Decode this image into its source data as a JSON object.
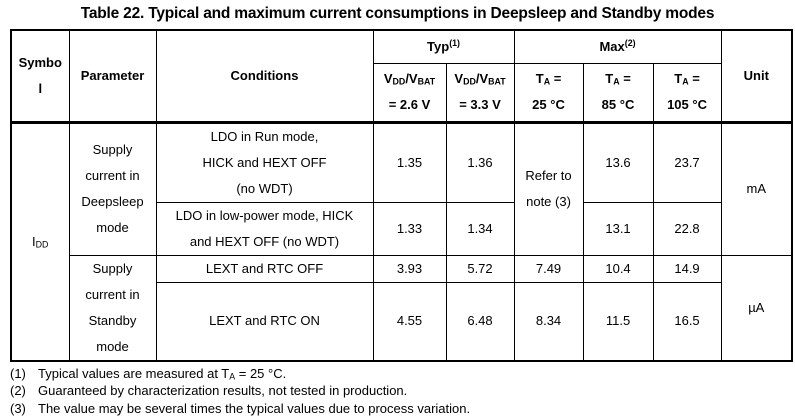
{
  "page": {
    "title": "Table 22. Typical and maximum current consumptions in Deepsleep and Standby modes"
  },
  "table": {
    "header": {
      "symbol": "Symbol",
      "parameter": "Parameter",
      "conditions": "Conditions",
      "unit": "Unit",
      "typ_group": [
        {
          "t": "Typ"
        },
        {
          "t": "(1)",
          "s": "sup"
        }
      ],
      "max_group": [
        {
          "t": "Max"
        },
        {
          "t": "(2)",
          "s": "sup"
        }
      ],
      "typ_cols": [
        [
          {
            "t": "V"
          },
          {
            "t": "DD",
            "s": "sub"
          },
          {
            "t": "/V"
          },
          {
            "t": "BAT",
            "s": "sub"
          },
          {
            "t": "\n= 2.6 V"
          }
        ],
        [
          {
            "t": "V"
          },
          {
            "t": "DD",
            "s": "sub"
          },
          {
            "t": "/V"
          },
          {
            "t": "BAT",
            "s": "sub"
          },
          {
            "t": "\n= 3.3 V"
          }
        ]
      ],
      "max_cols": [
        [
          {
            "t": "T"
          },
          {
            "t": "A",
            "s": "sub"
          },
          {
            "t": " =\n25 °C"
          }
        ],
        [
          {
            "t": "T"
          },
          {
            "t": "A",
            "s": "sub"
          },
          {
            "t": " =\n85 °C"
          }
        ],
        [
          {
            "t": "T"
          },
          {
            "t": "A",
            "s": "sub"
          },
          {
            "t": " =\n105 °C"
          }
        ]
      ]
    },
    "symbol": [
      {
        "t": "I"
      },
      {
        "t": "DD",
        "s": "sub"
      }
    ],
    "deepsleep": {
      "parameter": "Supply current in Deepsleep mode",
      "unit": "mA",
      "max25_note": "Refer to note (3)",
      "rows": [
        {
          "conditions": "LDO in Run mode,\nHICK and HEXT OFF\n(no WDT)",
          "typ_26": "1.35",
          "typ_33": "1.36",
          "max_85": "13.6",
          "max_105": "23.7"
        },
        {
          "conditions": "LDO in low-power mode, HICK\nand HEXT OFF (no WDT)",
          "typ_26": "1.33",
          "typ_33": "1.34",
          "max_85": "13.1",
          "max_105": "22.8"
        }
      ]
    },
    "standby": {
      "parameter": "Supply current in Standby mode",
      "unit": "µA",
      "rows": [
        {
          "conditions": "LEXT and RTC OFF",
          "typ_26": "3.93",
          "typ_33": "5.72",
          "max_25": "7.49",
          "max_85": "10.4",
          "max_105": "14.9"
        },
        {
          "conditions": "LEXT and RTC ON",
          "typ_26": "4.55",
          "typ_33": "6.48",
          "max_25": "8.34",
          "max_85": "11.5",
          "max_105": "16.5"
        }
      ]
    },
    "footnotes": [
      {
        "num": "(1)",
        "text": [
          {
            "t": "Typical values are measured at T"
          },
          {
            "t": "A",
            "s": "sub"
          },
          {
            "t": " = 25 °C."
          }
        ]
      },
      {
        "num": "(2)",
        "text": [
          {
            "t": "Guaranteed by characterization results, not tested in production."
          }
        ]
      },
      {
        "num": "(3)",
        "text": [
          {
            "t": "The value may be several times the typical values due to process variation."
          }
        ]
      }
    ]
  }
}
